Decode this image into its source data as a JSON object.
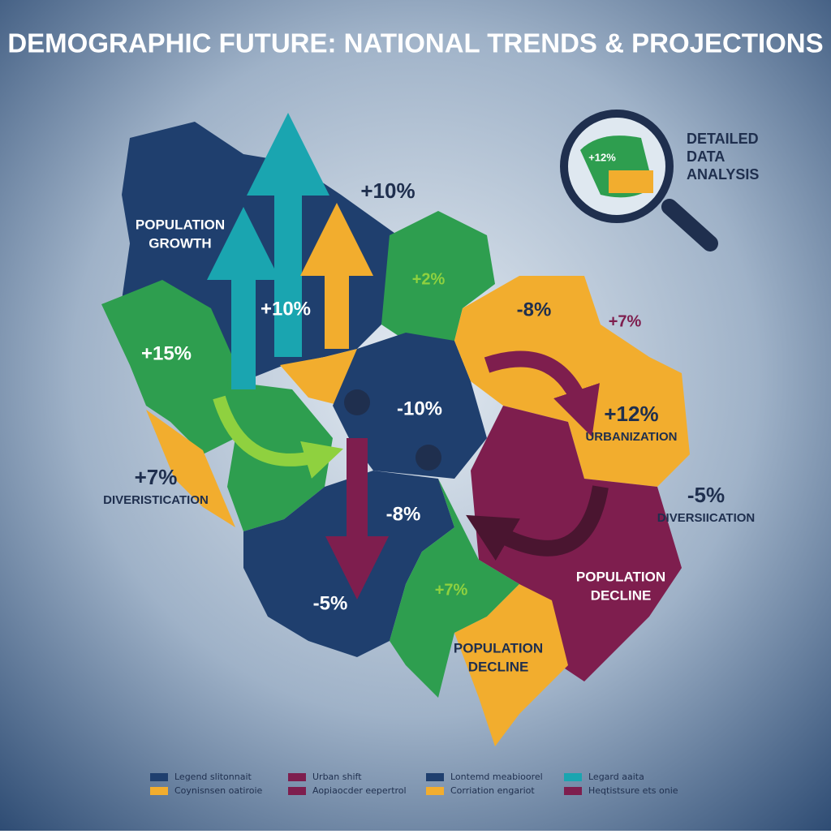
{
  "title": "DEMOGRAPHIC FUTURE: NATIONAL TRENDS & PROJECTIONS",
  "inset": {
    "label": "+12%",
    "caption": [
      "DETAILED",
      "DATA",
      "ANALYSIS"
    ]
  },
  "labels": [
    {
      "lines": [
        "POPULATION",
        "GROWTH"
      ]
    },
    {
      "lines": [
        "+10%"
      ]
    },
    {
      "lines": [
        "+10%"
      ]
    },
    {
      "lines": [
        "+15%"
      ]
    },
    {
      "lines": [
        "+2%"
      ]
    },
    {
      "lines": [
        "-8%"
      ]
    },
    {
      "lines": [
        "+7%"
      ]
    },
    {
      "lines": [
        "-10%"
      ]
    },
    {
      "lines": [
        "+12%",
        "URBANIZATION"
      ]
    },
    {
      "lines": [
        "+7%",
        "DIVERISTICATION"
      ]
    },
    {
      "lines": [
        "-5%",
        "DIVERSIICATION"
      ]
    },
    {
      "lines": [
        "-8%"
      ]
    },
    {
      "lines": [
        "POPULATION",
        "DECLINE"
      ]
    },
    {
      "lines": [
        "+7%"
      ]
    },
    {
      "lines": [
        "-5%"
      ]
    },
    {
      "lines": [
        "POPULATION",
        "DECLINE"
      ]
    }
  ],
  "legend": [
    {
      "text": "Legend slitonnait",
      "color": "#1f3f6e"
    },
    {
      "text": "Coynisnsen oatiroie",
      "color": "#f2ad2e"
    },
    {
      "text": "Urban shift",
      "color": "#7e1e4e"
    },
    {
      "text": "Aopiaocder eepertrol",
      "color": "#7e1e4e"
    },
    {
      "text": "Lontemd meabioorel",
      "color": "#1f3f6e"
    },
    {
      "text": "Corriation engariot",
      "color": "#f2ad2e"
    },
    {
      "text": "Legard aaita",
      "color": "#1aa5b0"
    },
    {
      "text": "Heqtistsure ets onie",
      "color": "#7e1e4e"
    }
  ]
}
